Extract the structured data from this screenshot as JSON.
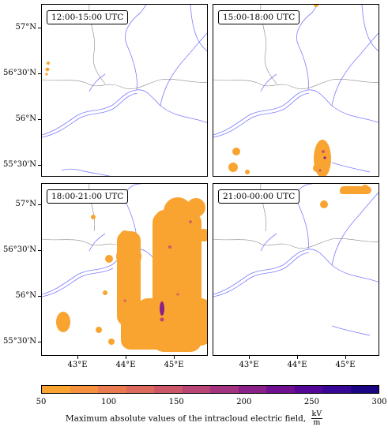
{
  "panels": [
    {
      "title": "12:00-15:00 UTC"
    },
    {
      "title": "15:00-18:00 UTC"
    },
    {
      "title": "18:00-21:00 UTC"
    },
    {
      "title": "21:00-00:00 UTC"
    }
  ],
  "lat_labels": [
    "57°N",
    "56°30'N",
    "56°N",
    "55°30'N"
  ],
  "lon_labels": [
    "43°E",
    "44°E",
    "45°E"
  ],
  "colorbar": {
    "ticks": [
      "50",
      "100",
      "150",
      "200",
      "250",
      "300"
    ],
    "colors": [
      "#f9a430",
      "#f5913f",
      "#ea7b50",
      "#dc6a5c",
      "#cc5768",
      "#b84574",
      "#a3337f",
      "#8a2188",
      "#700f90",
      "#540697",
      "#370694",
      "#1a0482"
    ],
    "label": "Maximum absolute values of the intracloud electric field,",
    "unit_num": "kV",
    "unit_den": "m"
  },
  "colors": {
    "river": "#7d7dff",
    "border": "#888888",
    "field_low": "#f9a430",
    "field_mid": "#dc6a5c",
    "field_high": "#700f90"
  }
}
